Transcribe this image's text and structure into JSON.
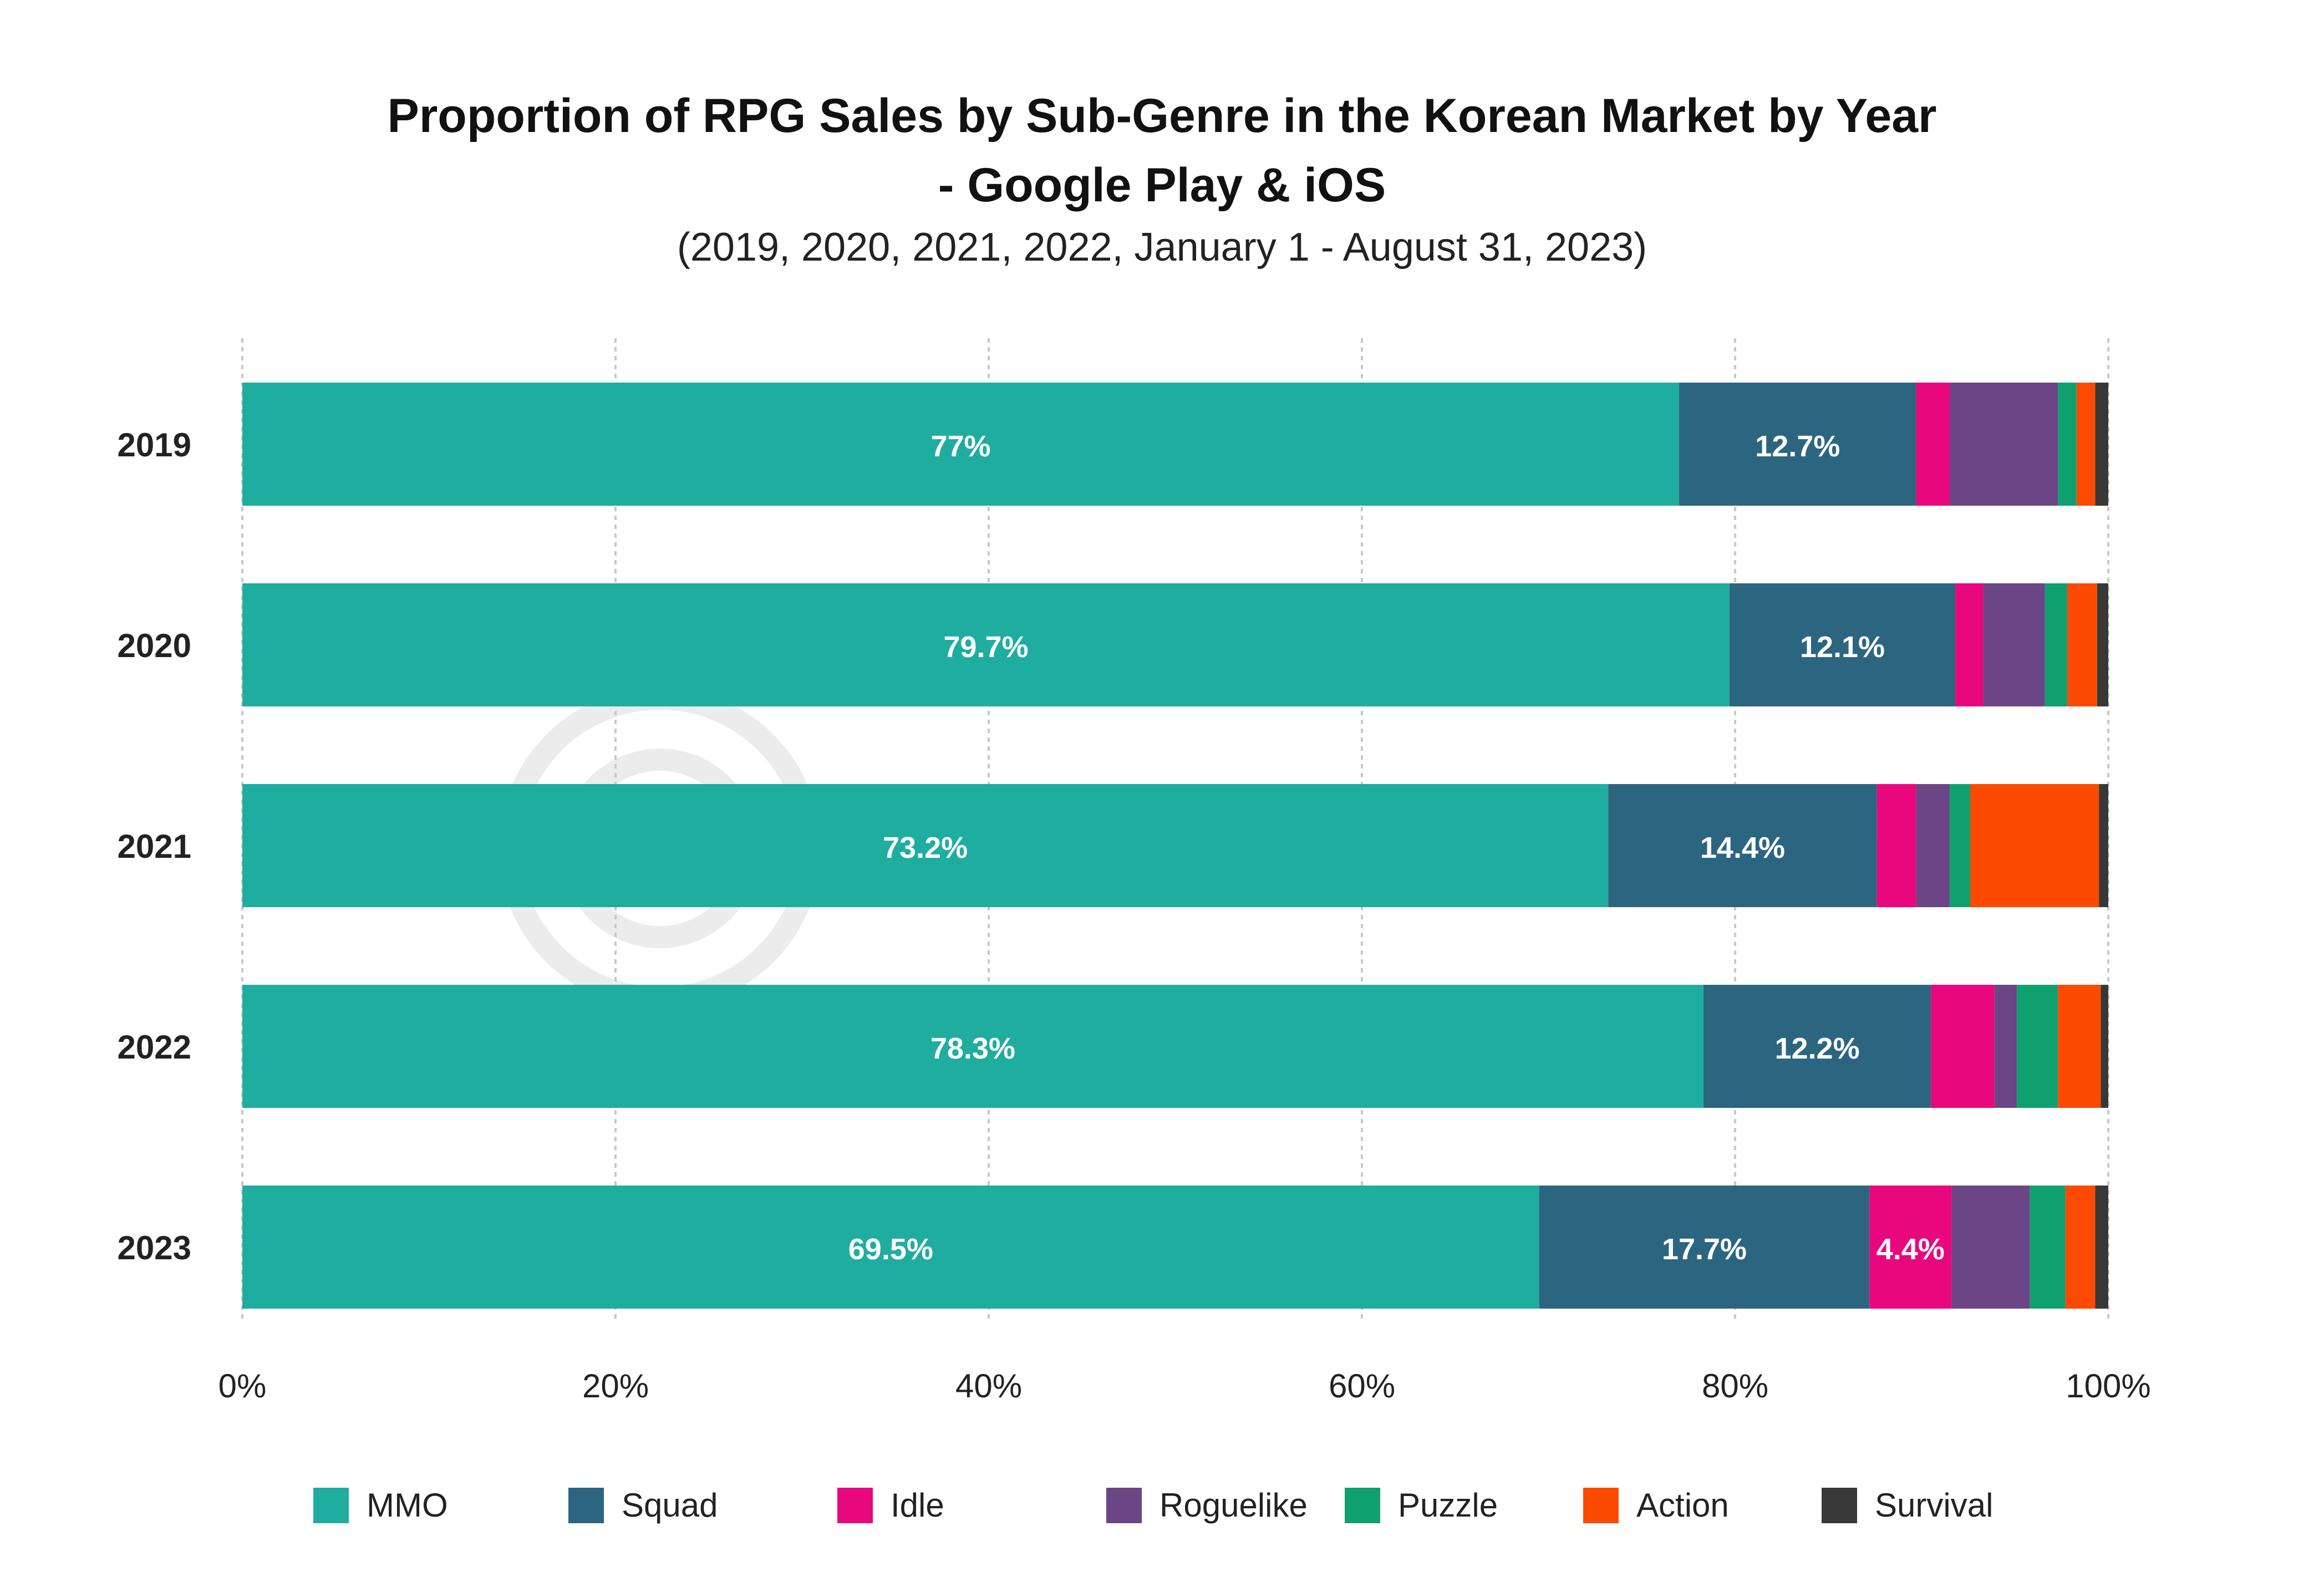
{
  "chart_data": {
    "type": "bar",
    "orientation": "horizontal",
    "stacked": true,
    "title": "Proportion of RPG Sales by Sub-Genre in the Korean Market by Year",
    "title_line2": "- Google Play & iOS",
    "subtitle": "(2019, 2020, 2021, 2022, January 1 - August 31, 2023)",
    "categories": [
      "2019",
      "2020",
      "2021",
      "2022",
      "2023"
    ],
    "xlim": [
      0,
      100
    ],
    "x_ticks": [
      "0%",
      "20%",
      "40%",
      "60%",
      "80%",
      "100%"
    ],
    "grid": true,
    "legend_position": "bottom",
    "watermark": "SensorTower",
    "series": [
      {
        "name": "MMO",
        "color": "#1fada0",
        "values": [
          77.0,
          79.7,
          73.2,
          78.3,
          69.5
        ],
        "labels": [
          "77%",
          "79.7%",
          "73.2%",
          "78.3%",
          "69.5%"
        ]
      },
      {
        "name": "Squad",
        "color": "#2c6580",
        "values": [
          12.7,
          12.1,
          14.4,
          12.2,
          17.7
        ],
        "labels": [
          "12.7%",
          "12.1%",
          "14.4%",
          "12.2%",
          "17.7%"
        ]
      },
      {
        "name": "Idle",
        "color": "#e8077d",
        "values": [
          1.8,
          1.5,
          2.1,
          3.4,
          4.4
        ],
        "labels": [
          "",
          "",
          "",
          "",
          "4.4%"
        ]
      },
      {
        "name": "Roguelike",
        "color": "#6b4585",
        "values": [
          5.8,
          3.3,
          1.8,
          1.2,
          4.2
        ],
        "labels": [
          "",
          "",
          "",
          "",
          ""
        ]
      },
      {
        "name": "Puzzle",
        "color": "#10a070",
        "values": [
          1.0,
          1.2,
          1.1,
          2.2,
          1.9
        ],
        "labels": [
          "",
          "",
          "",
          "",
          ""
        ]
      },
      {
        "name": "Action",
        "color": "#fc4a03",
        "values": [
          1.0,
          1.6,
          6.9,
          2.3,
          1.6
        ],
        "labels": [
          "",
          "",
          "",
          "",
          ""
        ]
      },
      {
        "name": "Survival",
        "color": "#383838",
        "values": [
          0.7,
          0.6,
          0.5,
          0.4,
          0.7
        ],
        "labels": [
          "",
          "",
          "",
          "",
          ""
        ]
      }
    ]
  }
}
